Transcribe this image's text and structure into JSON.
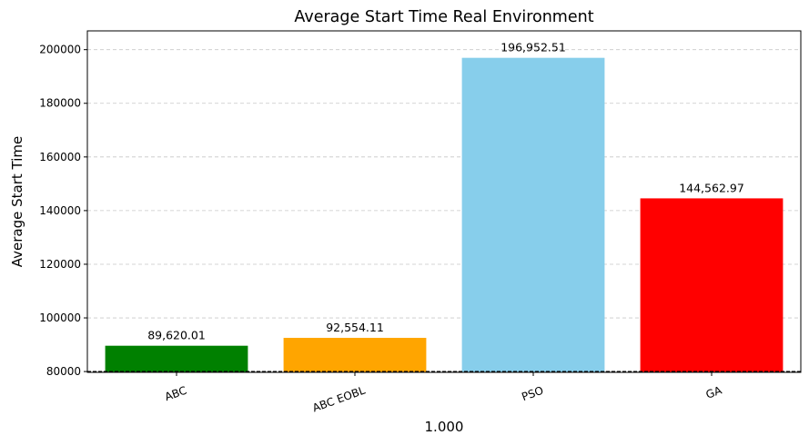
{
  "chart_data": {
    "type": "bar",
    "title": "Average Start Time Real Environment",
    "xlabel": "1.000",
    "ylabel": "Average Start Time",
    "categories": [
      "ABC",
      "ABC EOBL",
      "PSO",
      "GA"
    ],
    "values": [
      89620.01,
      92554.11,
      196952.51,
      144562.97
    ],
    "value_labels": [
      "89,620.01",
      "92,554.11",
      "196,952.51",
      "144,562.97"
    ],
    "colors": [
      "#008000",
      "#ffa500",
      "#87ceeb",
      "#ff0000"
    ],
    "ylim": [
      79700,
      207000
    ],
    "yticks": [
      80000,
      100000,
      120000,
      140000,
      160000,
      180000,
      200000
    ],
    "ytick_labels": [
      "80000",
      "100000",
      "120000",
      "140000",
      "160000",
      "180000",
      "200000"
    ],
    "grid": "y-dashed",
    "xtick_rotation": -20
  }
}
